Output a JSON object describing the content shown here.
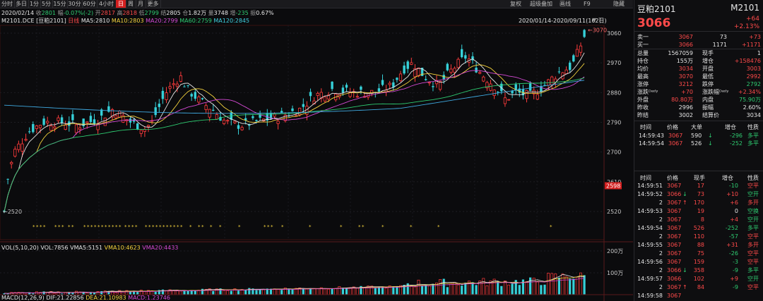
{
  "toolbar": {
    "periods": [
      "分时",
      "多日",
      "1分",
      "5分",
      "15分",
      "30分",
      "60分",
      "4小时",
      "日",
      "周",
      "月",
      "更多"
    ],
    "active": "日",
    "right": [
      "复权",
      "超级叠加",
      "画线",
      "F9",
      "隐藏"
    ]
  },
  "info_line": {
    "date": "2020/02/14",
    "close_label": "收",
    "close": "2801",
    "change_label": "幅",
    "change": "-0.07%(-2)",
    "open_label": "开",
    "open": "2817",
    "high_label": "高",
    "high": "2818",
    "low_label": "低",
    "low": "2799",
    "settle_label": "结",
    "settle": "2805",
    "vol_label": "仓",
    "vol": "1.82万",
    "amount_label": "量",
    "amount": "3748",
    "delta_label": "增",
    "delta": "-235",
    "amp_label": "振",
    "amp": "0.67%"
  },
  "ma_line": {
    "symbol": "M2101.DCE [豆粕2101]",
    "period": "日线",
    "ma5": "MA5:2810",
    "ma10": "MA10:2803",
    "ma20": "MA20:2799",
    "ma60": "MA60:2759",
    "ma120": "MA120:2845"
  },
  "range_label": "2020/01/14-2020/09/11(162日)",
  "price_axis": [
    "3060",
    "2970",
    "2880",
    "2790",
    "2700",
    "2610",
    "2520"
  ],
  "price_marker": "2598",
  "high_label": "3070",
  "low_label": "2520",
  "vol_line": {
    "title": "VOL(5,10,20)",
    "vol": "VOL:7856",
    "vma5": "VMA5:5151",
    "vma10": "VMA10:4623",
    "vma20": "VMA20:4433"
  },
  "vol_axis": [
    "200万",
    "100万"
  ],
  "macd_line": {
    "title": "MACD(12,26,9)",
    "dif": "DIF:21.22856",
    "dea": "DEA:21.10983",
    "macd": "MACD:1.23746"
  },
  "colors": {
    "up": "#ff3b3b",
    "down": "#36d0d8",
    "ma5": "#e6e6e6",
    "ma10": "#f5d33d",
    "ma20": "#d64ad6",
    "ma60": "#2ecc71",
    "ma120": "#3fa9e0"
  },
  "panel": {
    "name": "豆粕2101",
    "code": "M2101",
    "price": "3066",
    "change": "+64",
    "change_pct": "+2.13%",
    "ask": {
      "label": "卖一",
      "price": "3067",
      "vol": "73",
      "chg": "+73"
    },
    "bid": {
      "label": "买一",
      "price": "3066",
      "vol": "1171",
      "chg": "+1171"
    },
    "stats": [
      {
        "l": "总量",
        "v": "1567059",
        "l2": "现手",
        "v2": "1",
        "c": "white",
        "c2": "white"
      },
      {
        "l": "持仓",
        "v": "155万",
        "l2": "增仓",
        "v2": "+158476",
        "c": "white",
        "c2": "red"
      },
      {
        "l": "均价",
        "v": "3034",
        "l2": "开盘",
        "v2": "3003",
        "c": "red",
        "c2": "red"
      },
      {
        "l": "最高",
        "v": "3070",
        "l2": "最低",
        "v2": "2992",
        "c": "red",
        "c2": "red"
      },
      {
        "l": "涨停",
        "v": "3212",
        "l2": "跌停",
        "v2": "2792",
        "c": "red",
        "c2": "green"
      },
      {
        "l": "涨跌Dinner",
        "v": "+70",
        "l2": "涨跌幅Dinner",
        "v2": "+2.34%",
        "c": "red",
        "c2": "red"
      },
      {
        "l": "外盘",
        "v": "80.80万",
        "l2": "内盘",
        "v2": "75.90万",
        "c": "red",
        "c2": "green"
      },
      {
        "l": "昨收",
        "v": "2996",
        "l2": "振幅",
        "v2": "2.60%",
        "c": "white",
        "c2": "white"
      },
      {
        "l": "昨结",
        "v": "3002",
        "l2": "结算价",
        "v2": "3034",
        "c": "white",
        "c2": "white"
      }
    ],
    "tick_header": [
      "时间",
      "价格",
      "大单",
      "增仓",
      "性质"
    ],
    "big_ticks": [
      {
        "t": "14:59:43",
        "p": "3067",
        "v": "590",
        "d": "-296",
        "n": "多平"
      },
      {
        "t": "14:59:54",
        "p": "3067",
        "v": "526",
        "d": "-252",
        "n": "多平"
      }
    ],
    "trade_header": [
      "时间",
      "价格",
      "现手",
      "增仓",
      "性质"
    ],
    "trades": [
      {
        "t": "14:59:51",
        "p": "3067",
        "a": "",
        "v": "17",
        "d": "-10",
        "n": "空平",
        "pc": "red",
        "nc": "red"
      },
      {
        "t": "14:59:52",
        "p": "3066",
        "a": "↓",
        "v": "73",
        "d": "+10",
        "n": "空开",
        "pc": "red",
        "nc": "green"
      },
      {
        "t": "2",
        "p": "3067",
        "a": "↑",
        "v": "170",
        "d": "+6",
        "n": "多开",
        "pc": "red",
        "nc": "red"
      },
      {
        "t": "14:59:53",
        "p": "3067",
        "a": "",
        "v": "19",
        "d": "0",
        "n": "空换",
        "pc": "red",
        "nc": "green"
      },
      {
        "t": "2",
        "p": "3067",
        "a": "",
        "v": "8",
        "d": "+4",
        "n": "空开",
        "pc": "red",
        "nc": "green"
      },
      {
        "t": "14:59:54",
        "p": "3067",
        "a": "",
        "v": "526",
        "d": "-252",
        "n": "多平",
        "pc": "red",
        "nc": "green"
      },
      {
        "t": "2",
        "p": "3067",
        "a": "",
        "v": "110",
        "d": "-57",
        "n": "空平",
        "pc": "red",
        "nc": "red"
      },
      {
        "t": "14:59:55",
        "p": "3067",
        "a": "",
        "v": "88",
        "d": "+31",
        "n": "多开",
        "pc": "red",
        "nc": "red"
      },
      {
        "t": "2",
        "p": "3067",
        "a": "",
        "v": "75",
        "d": "-26",
        "n": "空平",
        "pc": "red",
        "nc": "red"
      },
      {
        "t": "14:59:56",
        "p": "3067",
        "a": "",
        "v": "159",
        "d": "-3",
        "n": "空平",
        "pc": "red",
        "nc": "red"
      },
      {
        "t": "2",
        "p": "3066",
        "a": "↓",
        "v": "358",
        "d": "-9",
        "n": "多平",
        "pc": "red",
        "nc": "green"
      },
      {
        "t": "14:59:57",
        "p": "3066",
        "a": "",
        "v": "102",
        "d": "+9",
        "n": "空开",
        "pc": "red",
        "nc": "green"
      },
      {
        "t": "2",
        "p": "3067",
        "a": "↑",
        "v": "84",
        "d": "-9",
        "n": "空平",
        "pc": "red",
        "nc": "red"
      },
      {
        "t": "14:59:58",
        "p": "3067",
        "a": "",
        "v": "",
        "d": "",
        "n": "",
        "pc": "red",
        "nc": "red"
      }
    ]
  }
}
